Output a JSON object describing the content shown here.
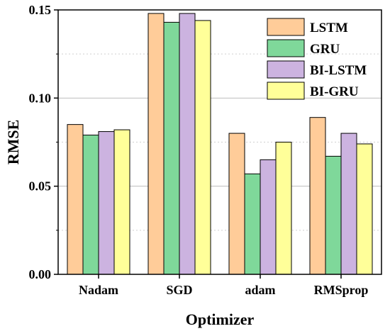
{
  "chart_data": {
    "type": "bar",
    "categories": [
      "Nadam",
      "SGD",
      "adam",
      "RMSprop"
    ],
    "series": [
      {
        "name": "LSTM",
        "color": "#FFCC99",
        "values": [
          0.085,
          0.148,
          0.08,
          0.089
        ]
      },
      {
        "name": "GRU",
        "color": "#7FD89A",
        "values": [
          0.079,
          0.143,
          0.057,
          0.067
        ]
      },
      {
        "name": "BI-LSTM",
        "color": "#CCB3E0",
        "values": [
          0.081,
          0.148,
          0.065,
          0.08
        ]
      },
      {
        "name": "BI-GRU",
        "color": "#FFFF99",
        "values": [
          0.082,
          0.144,
          0.075,
          0.074
        ]
      }
    ],
    "xlabel": "Optimizer",
    "ylabel": "RMSE",
    "ylim": [
      0,
      0.15
    ],
    "yticks": [
      0.0,
      0.05,
      0.1,
      0.15
    ],
    "ytick_labels": [
      "0.00",
      "0.05",
      "0.10",
      "0.15"
    ],
    "grid": "horizontal dashed",
    "legend_position": "top-right",
    "bar_edge_color": "#000000"
  }
}
